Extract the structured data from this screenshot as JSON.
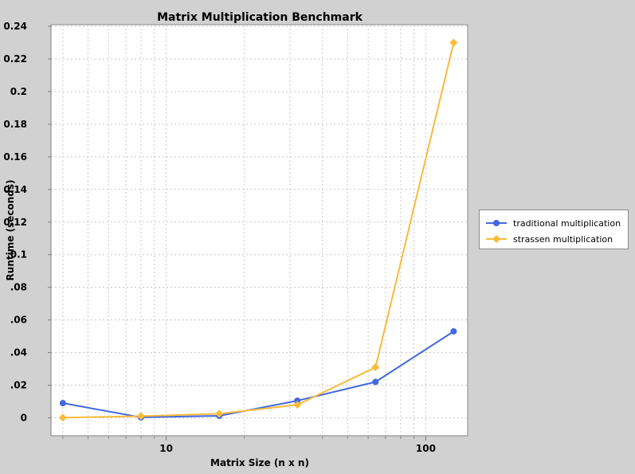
{
  "chart_data": {
    "type": "line",
    "title": "Matrix Multiplication Benchmark",
    "xlabel": "Matrix Size (n x n)",
    "ylabel": "Runtime (seconds)",
    "x_scale": "log",
    "xlim": [
      3.6,
      145
    ],
    "ylim": [
      -0.011,
      0.241
    ],
    "x_tick_labels": [
      {
        "value": 10,
        "label": "10"
      },
      {
        "value": 100,
        "label": "100"
      }
    ],
    "y_tick_labels": [
      {
        "value": 0,
        "label": "0"
      },
      {
        "value": 0.02,
        "label": ".02"
      },
      {
        "value": 0.04,
        "label": ".04"
      },
      {
        "value": 0.06,
        "label": ".06"
      },
      {
        "value": 0.08,
        "label": ".08"
      },
      {
        "value": 0.1,
        "label": "0.1"
      },
      {
        "value": 0.12,
        "label": "0.12"
      },
      {
        "value": 0.14,
        "label": "0.14"
      },
      {
        "value": 0.16,
        "label": "0.16"
      },
      {
        "value": 0.18,
        "label": "0.18"
      },
      {
        "value": 0.2,
        "label": "0.2"
      },
      {
        "value": 0.22,
        "label": "0.22"
      },
      {
        "value": 0.24,
        "label": "0.24"
      }
    ],
    "grid": true,
    "legend_position": "right",
    "x": [
      4,
      8,
      16,
      32,
      64,
      128
    ],
    "series": [
      {
        "name": "traditional multiplication",
        "values": [
          0.009,
          0.0003,
          0.0012,
          0.0105,
          0.022,
          0.053
        ],
        "color": "#4169e1",
        "marker": "circle"
      },
      {
        "name": "strassen multiplication",
        "values": [
          0.0001,
          0.001,
          0.0025,
          0.008,
          0.031,
          0.23
        ],
        "color": "#f9bb3b",
        "marker": "diamond"
      }
    ]
  }
}
